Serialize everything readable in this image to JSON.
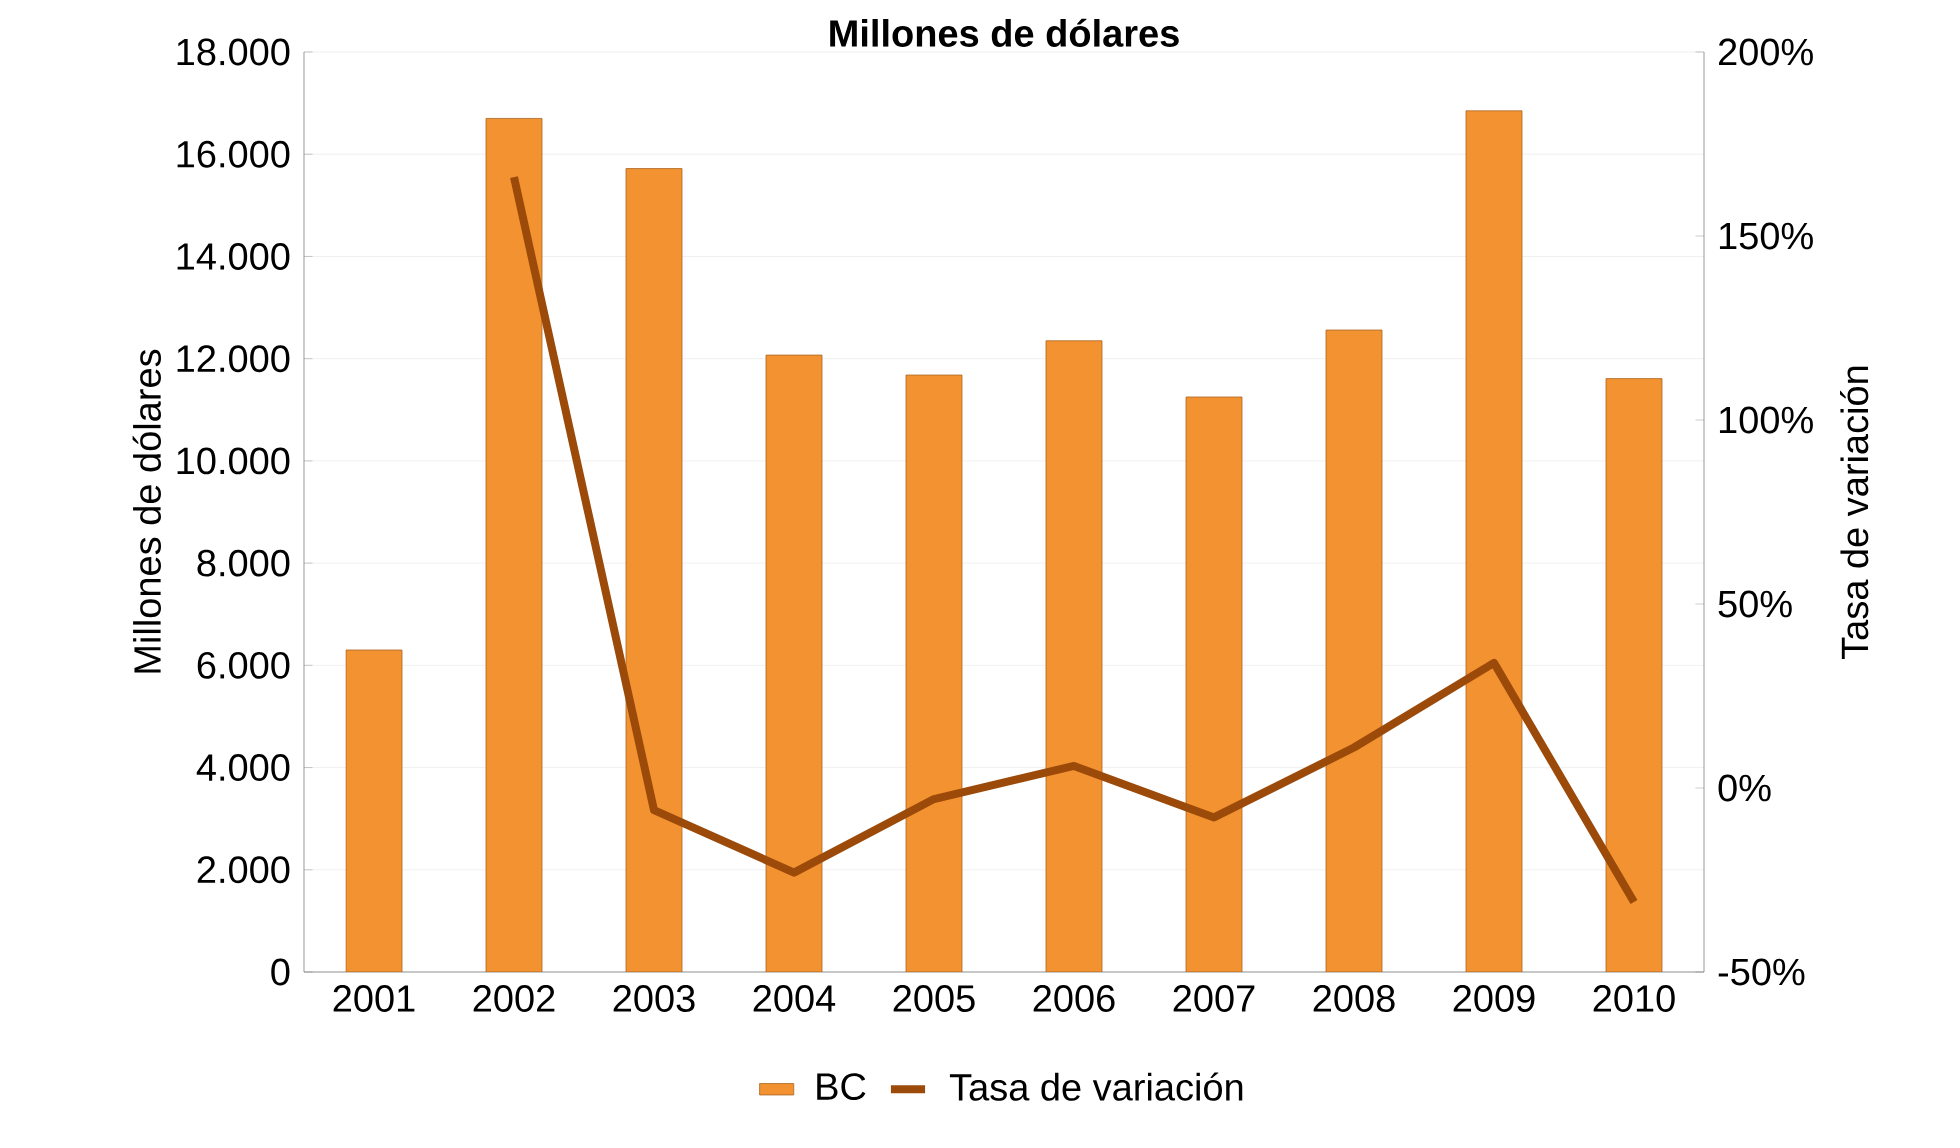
{
  "chart_data": {
    "type": "bar",
    "title": "Millones de dólares",
    "ylabel": "Millones de dólares",
    "y2label": "Tasa de variación",
    "categories": [
      "2001",
      "2002",
      "2003",
      "2004",
      "2005",
      "2006",
      "2007",
      "2008",
      "2009",
      "2010"
    ],
    "series": [
      {
        "name": "BC",
        "color": "#f39230",
        "values": [
          6300,
          16700,
          15720,
          12070,
          11680,
          12350,
          11250,
          12560,
          16850,
          11610
        ]
      },
      {
        "name": "Tasa de variación",
        "type": "line",
        "axis": "y2",
        "color": "#9c4a0a",
        "values": [
          null,
          166,
          -6,
          -23,
          -3,
          6,
          -8,
          11,
          34,
          -31
        ]
      }
    ],
    "ylim": [
      0,
      18000
    ],
    "yticks": [
      0,
      {
        "value": 2000,
        "label": "2.000"
      },
      {
        "value": 4000,
        "label": "4.000"
      },
      {
        "value": 6000,
        "label": "6.000"
      },
      {
        "value": 8000,
        "label": "8.000"
      },
      {
        "value": 10000,
        "label": "10.000"
      },
      {
        "value": 12000,
        "label": "12.000"
      },
      {
        "value": 14000,
        "label": "14.000"
      },
      {
        "value": 16000,
        "label": "16.000"
      },
      {
        "value": 18000,
        "label": "18.000"
      }
    ],
    "y2lim": [
      -50,
      200
    ],
    "y2ticks": [
      {
        "value": -50,
        "label": "-50%"
      },
      {
        "value": 0,
        "label": "0%"
      },
      {
        "value": 50,
        "label": "50%"
      },
      {
        "value": 100,
        "label": "100%"
      },
      {
        "value": 150,
        "label": "150%"
      },
      {
        "value": 200,
        "label": "200%"
      }
    ],
    "grid": "y",
    "legend": "bottom"
  }
}
